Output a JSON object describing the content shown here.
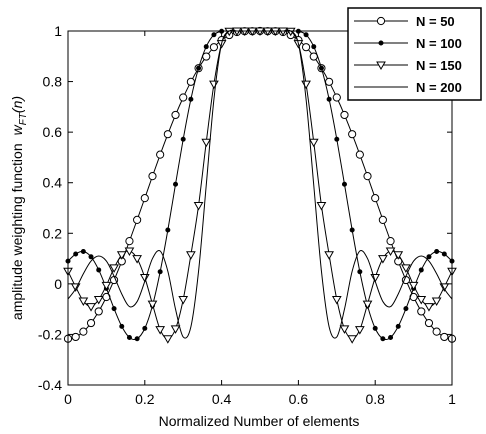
{
  "chart_data": {
    "type": "line",
    "xlabel": "Normalized Number of elements",
    "ylabel_main": "amplitude weighting function",
    "ylabel_symbol": "w",
    "ylabel_subscript": "FT",
    "ylabel_arg": "(n)",
    "xlim": [
      0,
      1
    ],
    "ylim": [
      -0.4,
      1
    ],
    "xticks": [
      "0",
      "0.2",
      "0.4",
      "0.6",
      "0.8",
      "1"
    ],
    "yticks": [
      "-0.4",
      "-0.2",
      "0",
      "0.2",
      "0.4",
      "0.6",
      "0.8",
      "1"
    ],
    "grid": false,
    "legend_position": "top-right",
    "legend": [
      "N = 50",
      "N = 100",
      "N = 150",
      "N = 200"
    ],
    "series": [
      {
        "name": "N = 50",
        "marker": "circle",
        "x": [
          0,
          0.02,
          0.04,
          0.06,
          0.08,
          0.1,
          0.12,
          0.14,
          0.16,
          0.18,
          0.2,
          0.22,
          0.24,
          0.26,
          0.28,
          0.3,
          0.32,
          0.34,
          0.36,
          0.38,
          0.4,
          0.42,
          0.44,
          0.46,
          0.48,
          0.5,
          0.52,
          0.54,
          0.56,
          0.58,
          0.6,
          0.62,
          0.64,
          0.66,
          0.68,
          0.7,
          0.72,
          0.74,
          0.76,
          0.78,
          0.8,
          0.82,
          0.84,
          0.86,
          0.88,
          0.9,
          0.92,
          0.94,
          0.96,
          0.98,
          1
        ],
        "values": [
          -0.217,
          -0.21,
          -0.189,
          -0.155,
          -0.109,
          -0.052,
          0.015,
          0.089,
          0.169,
          0.253,
          0.339,
          0.426,
          0.511,
          0.592,
          0.668,
          0.737,
          0.799,
          0.853,
          0.899,
          0.936,
          0.964,
          0.984,
          0.996,
          0.999,
          0.999,
          1.0,
          0.999,
          0.999,
          0.996,
          0.984,
          0.964,
          0.936,
          0.899,
          0.853,
          0.799,
          0.737,
          0.668,
          0.592,
          0.511,
          0.426,
          0.339,
          0.253,
          0.169,
          0.089,
          0.015,
          -0.052,
          -0.109,
          -0.155,
          -0.189,
          -0.21,
          -0.217
        ]
      },
      {
        "name": "N = 100",
        "marker": "dot",
        "x": [
          0,
          0.02,
          0.04,
          0.06,
          0.08,
          0.1,
          0.12,
          0.14,
          0.16,
          0.18,
          0.2,
          0.22,
          0.24,
          0.26,
          0.28,
          0.3,
          0.32,
          0.34,
          0.36,
          0.38,
          0.4,
          0.42,
          0.44,
          0.46,
          0.48,
          0.5,
          0.52,
          0.54,
          0.56,
          0.58,
          0.6,
          0.62,
          0.64,
          0.66,
          0.68,
          0.7,
          0.72,
          0.74,
          0.76,
          0.78,
          0.8,
          0.82,
          0.84,
          0.86,
          0.88,
          0.9,
          0.92,
          0.94,
          0.96,
          0.98,
          1
        ],
        "values": [
          0.09,
          0.118,
          0.128,
          0.107,
          0.055,
          -0.018,
          -0.098,
          -0.168,
          -0.212,
          -0.217,
          -0.176,
          -0.086,
          0.048,
          0.213,
          0.394,
          0.572,
          0.73,
          0.853,
          0.938,
          0.985,
          0.999,
          0.999,
          0.999,
          1.0,
          1.0,
          1.0,
          1.0,
          1.0,
          0.999,
          0.999,
          0.999,
          0.985,
          0.938,
          0.853,
          0.73,
          0.572,
          0.394,
          0.213,
          0.048,
          -0.086,
          -0.176,
          -0.217,
          -0.212,
          -0.168,
          -0.098,
          -0.018,
          0.055,
          0.107,
          0.128,
          0.118,
          0.09
        ]
      },
      {
        "name": "N = 150",
        "marker": "triangle-down",
        "x": [
          0,
          0.02,
          0.04,
          0.06,
          0.08,
          0.1,
          0.12,
          0.14,
          0.16,
          0.18,
          0.2,
          0.22,
          0.24,
          0.26,
          0.28,
          0.3,
          0.32,
          0.34,
          0.36,
          0.38,
          0.4,
          0.42,
          0.44,
          0.46,
          0.48,
          0.5,
          0.52,
          0.54,
          0.56,
          0.58,
          0.6,
          0.62,
          0.64,
          0.66,
          0.68,
          0.7,
          0.72,
          0.74,
          0.76,
          0.78,
          0.8,
          0.82,
          0.84,
          0.86,
          0.88,
          0.9,
          0.92,
          0.94,
          0.96,
          0.98,
          1
        ],
        "values": [
          0.05,
          -0.012,
          -0.068,
          -0.09,
          -0.062,
          -0.006,
          0.063,
          0.115,
          0.13,
          0.1,
          0.025,
          -0.08,
          -0.181,
          -0.217,
          -0.178,
          -0.062,
          0.115,
          0.31,
          0.56,
          0.79,
          0.95,
          0.999,
          1.0,
          1.0,
          1.0,
          1.0,
          1.0,
          1.0,
          1.0,
          0.999,
          0.95,
          0.79,
          0.56,
          0.31,
          0.115,
          -0.062,
          -0.178,
          -0.217,
          -0.181,
          -0.08,
          0.025,
          0.1,
          0.13,
          0.115,
          0.063,
          -0.006,
          -0.062,
          -0.09,
          -0.068,
          -0.012,
          0.05
        ]
      },
      {
        "name": "N = 200",
        "marker": "none",
        "x": [
          0,
          0.02,
          0.04,
          0.06,
          0.08,
          0.1,
          0.12,
          0.14,
          0.16,
          0.18,
          0.2,
          0.22,
          0.24,
          0.26,
          0.28,
          0.3,
          0.32,
          0.34,
          0.36,
          0.38,
          0.4,
          0.42,
          0.44,
          0.46,
          0.48,
          0.5,
          0.52,
          0.54,
          0.56,
          0.58,
          0.6,
          0.62,
          0.64,
          0.66,
          0.68,
          0.7,
          0.72,
          0.74,
          0.76,
          0.78,
          0.8,
          0.82,
          0.84,
          0.86,
          0.88,
          0.9,
          0.92,
          0.94,
          0.96,
          0.98,
          1
        ],
        "values": [
          -0.06,
          -0.02,
          0.04,
          0.09,
          0.11,
          0.09,
          0.03,
          -0.04,
          -0.09,
          -0.07,
          0.01,
          0.1,
          0.13,
          0.05,
          -0.1,
          -0.21,
          -0.17,
          0.05,
          0.39,
          0.73,
          0.95,
          1.0,
          1.0,
          1.0,
          1.0,
          1.0,
          1.0,
          1.0,
          1.0,
          1.0,
          0.95,
          0.73,
          0.39,
          0.05,
          -0.17,
          -0.21,
          -0.1,
          0.05,
          0.13,
          0.1,
          0.01,
          -0.07,
          -0.09,
          -0.04,
          0.03,
          0.09,
          0.11,
          0.09,
          0.04,
          -0.02,
          -0.06
        ]
      }
    ]
  }
}
